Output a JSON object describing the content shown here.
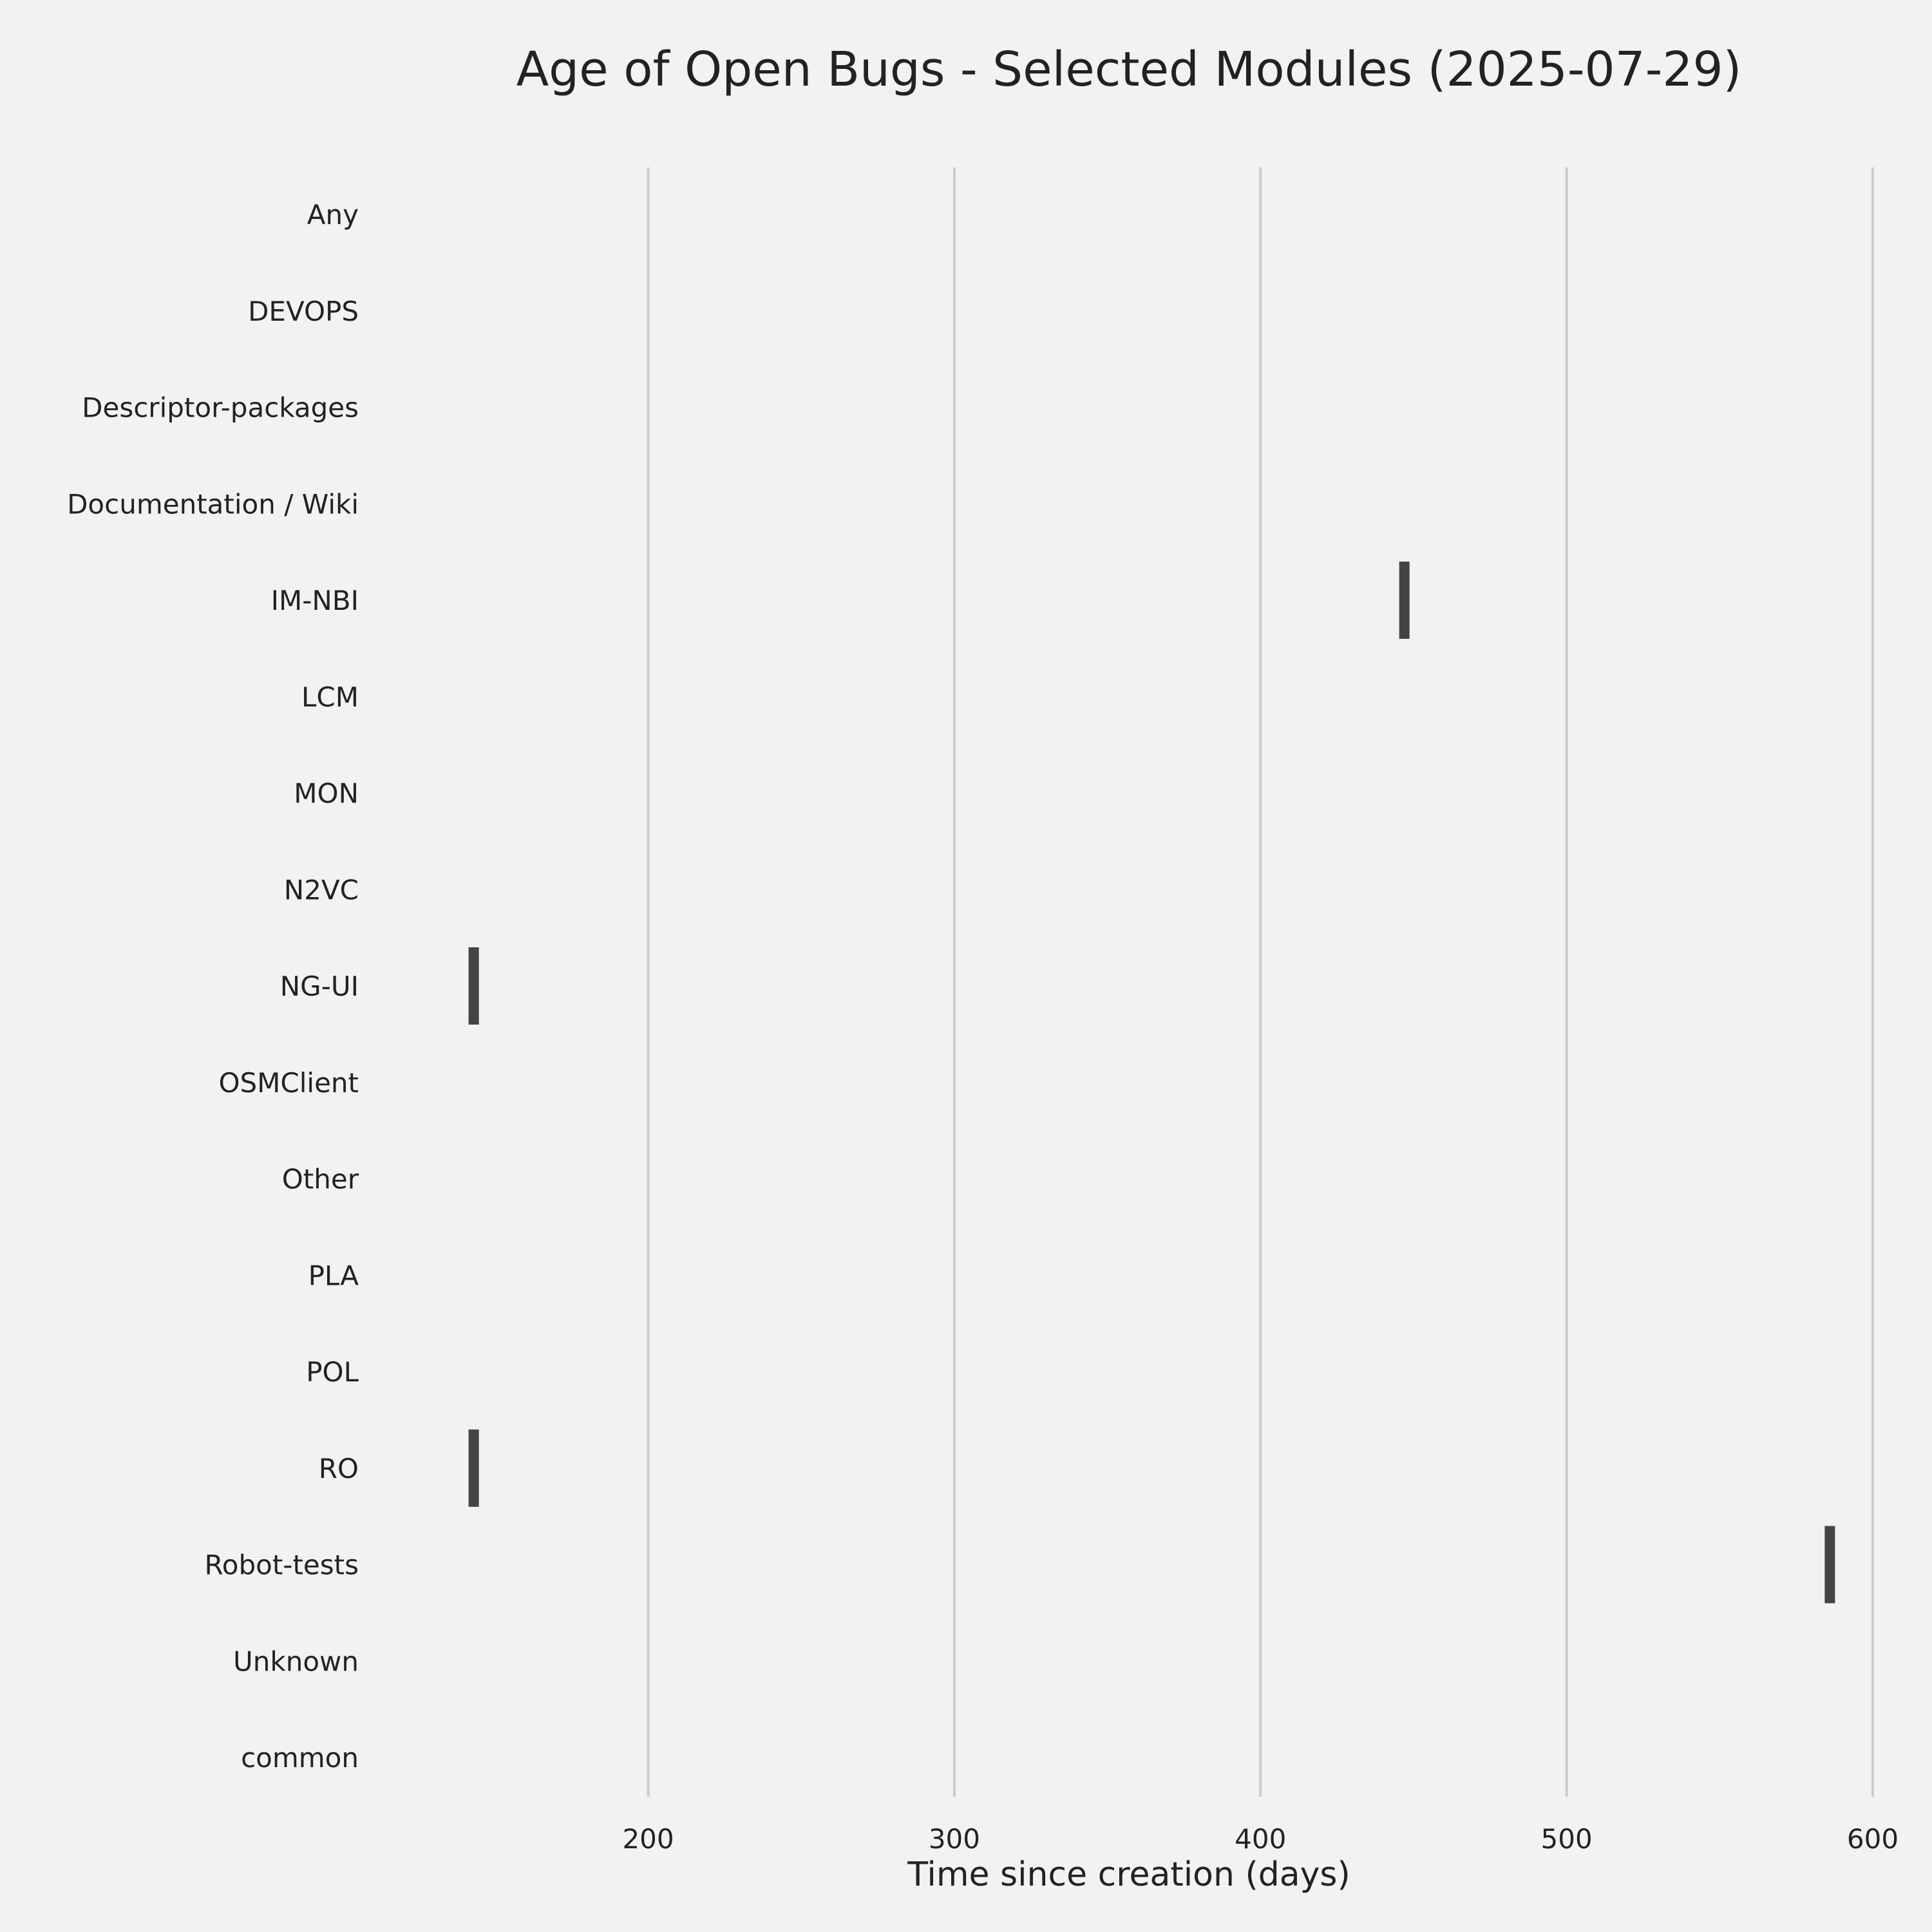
{
  "chart_data": {
    "type": "box",
    "title": "Age of Open Bugs - Selected Modules (2025-07-29)",
    "xlabel": "Time since creation (days)",
    "ylabel": "",
    "xlim": [
      117,
      608
    ],
    "xticks": [
      200,
      300,
      400,
      500,
      600
    ],
    "grid": "vertical",
    "categories": [
      "Any",
      "DEVOPS",
      "Descriptor-packages",
      "Documentation / Wiki",
      "IM-NBI",
      "LCM",
      "MON",
      "N2VC",
      "NG-UI",
      "OSMClient",
      "Other",
      "PLA",
      "POL",
      "RO",
      "Robot-tests",
      "Unknown",
      "common"
    ],
    "values": [
      null,
      null,
      null,
      null,
      447,
      null,
      null,
      null,
      143,
      null,
      null,
      null,
      null,
      143,
      586,
      null,
      null
    ],
    "colors": {
      "mark": "#444444",
      "grid": "#cbcbcb",
      "background": "#f2f2f2",
      "text": "#222222"
    }
  }
}
